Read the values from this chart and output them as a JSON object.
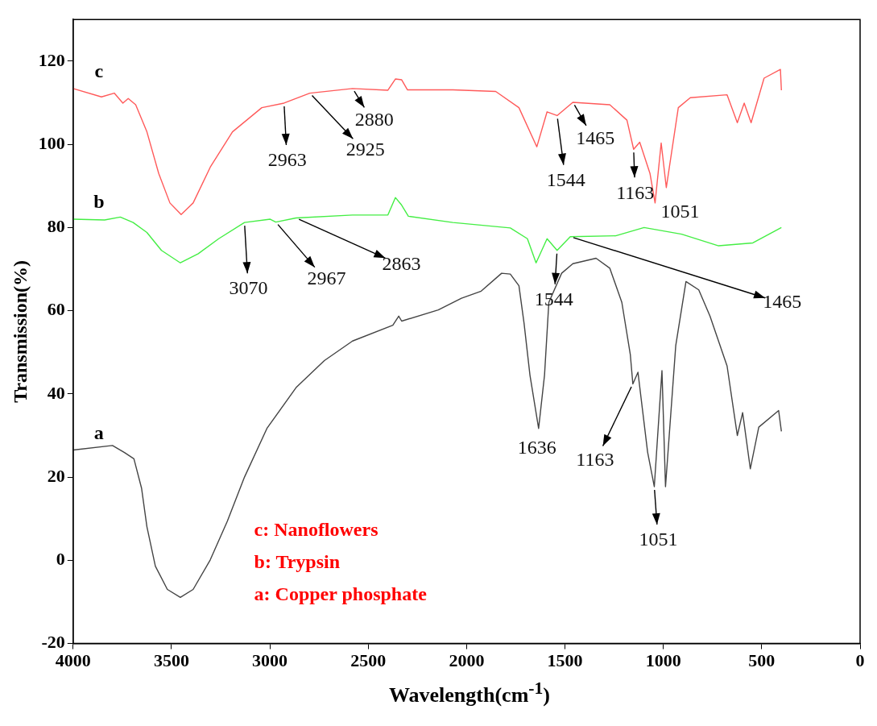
{
  "chart_data": {
    "type": "line",
    "xlabel": "Wavelength(cm$^{-1}$)",
    "ylabel": "Transmission(%)",
    "xlim": [
      4000,
      0
    ],
    "xticks": [
      4000,
      3500,
      3000,
      2500,
      2000,
      1500,
      1000,
      500,
      0
    ],
    "ylim": [
      -20,
      130
    ],
    "yticks": [
      -20,
      0,
      20,
      40,
      60,
      80,
      100,
      120
    ],
    "marker": "none",
    "series": [
      {
        "name": "c",
        "color": "#ff5a5a",
        "x": [
          4000,
          3856,
          3791,
          3747,
          3720,
          3682,
          3625,
          3565,
          3508,
          3451,
          3390,
          3303,
          3190,
          3041,
          2928,
          2797,
          2580,
          2400,
          2362,
          2330,
          2301,
          2070,
          1852,
          1734,
          1643,
          1591,
          1540,
          1460,
          1272,
          1185,
          1151,
          1120,
          1068,
          1042,
          1011,
          985,
          924,
          863,
          676,
          624,
          589,
          554,
          488,
          405,
          400
        ],
        "values": [
          113.4,
          111.4,
          112.3,
          109.9,
          111,
          109.5,
          103,
          93,
          85.9,
          83.1,
          85.9,
          94.5,
          103,
          108.8,
          109.9,
          112.3,
          113.4,
          113,
          115.7,
          115.5,
          113.1,
          113.1,
          112.7,
          108.8,
          99.4,
          107.8,
          106.9,
          110.1,
          109.5,
          105.8,
          98.8,
          100.5,
          93,
          85.9,
          100.3,
          89.6,
          108.8,
          111.2,
          111.9,
          105.2,
          109.9,
          105.2,
          115.9,
          118,
          113
        ]
      },
      {
        "name": "b",
        "color": "#44ee44",
        "x": [
          4000,
          3840,
          3760,
          3695,
          3625,
          3551,
          3455,
          3364,
          3260,
          3129,
          2998,
          2970,
          2867,
          2580,
          2400,
          2362,
          2332,
          2296,
          2070,
          1778,
          1691,
          1647,
          1591,
          1540,
          1473,
          1242,
          1098,
          907,
          719,
          545,
          400
        ],
        "values": [
          82,
          81.8,
          82.5,
          81.2,
          78.8,
          74.5,
          71.5,
          73.7,
          77.3,
          81.2,
          82,
          81.3,
          82.3,
          83,
          83,
          87.2,
          85.5,
          82.7,
          81.2,
          79.9,
          77.3,
          71.5,
          77.3,
          74.5,
          77.8,
          78,
          80,
          78.4,
          75.6,
          76.3,
          80
        ]
      },
      {
        "name": "a",
        "color": "#444444",
        "x": [
          4000,
          3800,
          3739,
          3691,
          3652,
          3625,
          3582,
          3521,
          3455,
          3390,
          3303,
          3216,
          3129,
          3015,
          2867,
          2723,
          2580,
          2375,
          2345,
          2330,
          2144,
          2026,
          1926,
          1822,
          1778,
          1734,
          1708,
          1678,
          1634,
          1604,
          1582,
          1517,
          1460,
          1342,
          1272,
          1211,
          1168,
          1155,
          1129,
          1080,
          1046,
          1007,
          989,
          937,
          885,
          820,
          763,
          676,
          624,
          597,
          558,
          515,
          414,
          400
        ],
        "values": [
          26.5,
          27.6,
          25.9,
          24.4,
          17.3,
          8.1,
          -1.4,
          -7,
          -8.9,
          -7,
          0.1,
          9.4,
          20,
          31.7,
          41.5,
          48,
          52.7,
          56.5,
          58.7,
          57.5,
          60.2,
          63,
          64.7,
          69,
          68.8,
          66,
          57,
          44.5,
          31.7,
          44.5,
          62,
          69,
          71.3,
          72.6,
          70.2,
          62,
          49.5,
          42.4,
          45.2,
          26,
          17.7,
          45.6,
          17.7,
          51.6,
          67,
          65,
          58.7,
          46.7,
          30,
          35.5,
          22,
          32,
          36,
          31
        ]
      }
    ],
    "annotations": [
      {
        "text": "2963",
        "x": 2928,
        "y": 109.9
      },
      {
        "text": "2925",
        "x": 2797,
        "y": 112.3
      },
      {
        "text": "2880",
        "x": 2580,
        "y": 113.4
      },
      {
        "text": "1544",
        "x": 1540,
        "y": 106.9
      },
      {
        "text": "1465",
        "x": 1460,
        "y": 110.1
      },
      {
        "text": "1163",
        "x": 1151,
        "y": 98.8
      },
      {
        "text": "1051",
        "x": 1042,
        "y": 85.9
      },
      {
        "text": "3070",
        "x": 3129,
        "y": 81.2
      },
      {
        "text": "2967",
        "x": 2970,
        "y": 81.3
      },
      {
        "text": "2863",
        "x": 2867,
        "y": 82.3
      },
      {
        "text": "1544",
        "x": 1540,
        "y": 74.5
      },
      {
        "text": "1465",
        "x": 1473,
        "y": 77.8
      },
      {
        "text": "1636",
        "x": 1634,
        "y": 31.7
      },
      {
        "text": "1163",
        "x": 1155,
        "y": 42.4
      },
      {
        "text": "1051",
        "x": 1046,
        "y": 17.7
      },
      "c: Nanoflowers",
      "b: Trypsin",
      "a: Copper phosphate"
    ]
  }
}
